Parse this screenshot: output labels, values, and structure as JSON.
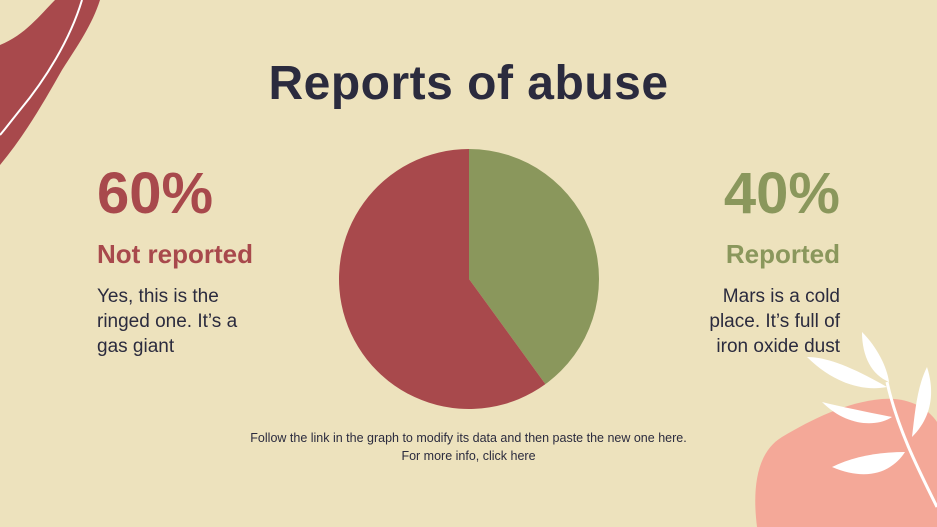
{
  "title": "Reports of abuse",
  "left_stat": {
    "percent": "60%",
    "label": "Not reported",
    "desc_lines": [
      "Yes, this is the",
      "ringed one. It’s a",
      "gas giant"
    ]
  },
  "right_stat": {
    "percent": "40%",
    "label": "Reported",
    "desc_lines": [
      "Mars is a cold",
      "place. It’s full of",
      "iron oxide dust"
    ]
  },
  "footer": {
    "line1": "Follow the link in the graph to modify its data and then paste the new one here.",
    "line2": "For more info, click here"
  },
  "colors": {
    "background": "#ede2bd",
    "not_reported": "#a8494c",
    "reported": "#8a975c",
    "title": "#2b2b3e",
    "pink_leaf": "#f4a898"
  },
  "chart_data": {
    "type": "pie",
    "slices": [
      {
        "label": "Reported",
        "value": 40,
        "color": "#8a975c"
      },
      {
        "label": "Not reported",
        "value": 60,
        "color": "#a8494c"
      }
    ]
  }
}
